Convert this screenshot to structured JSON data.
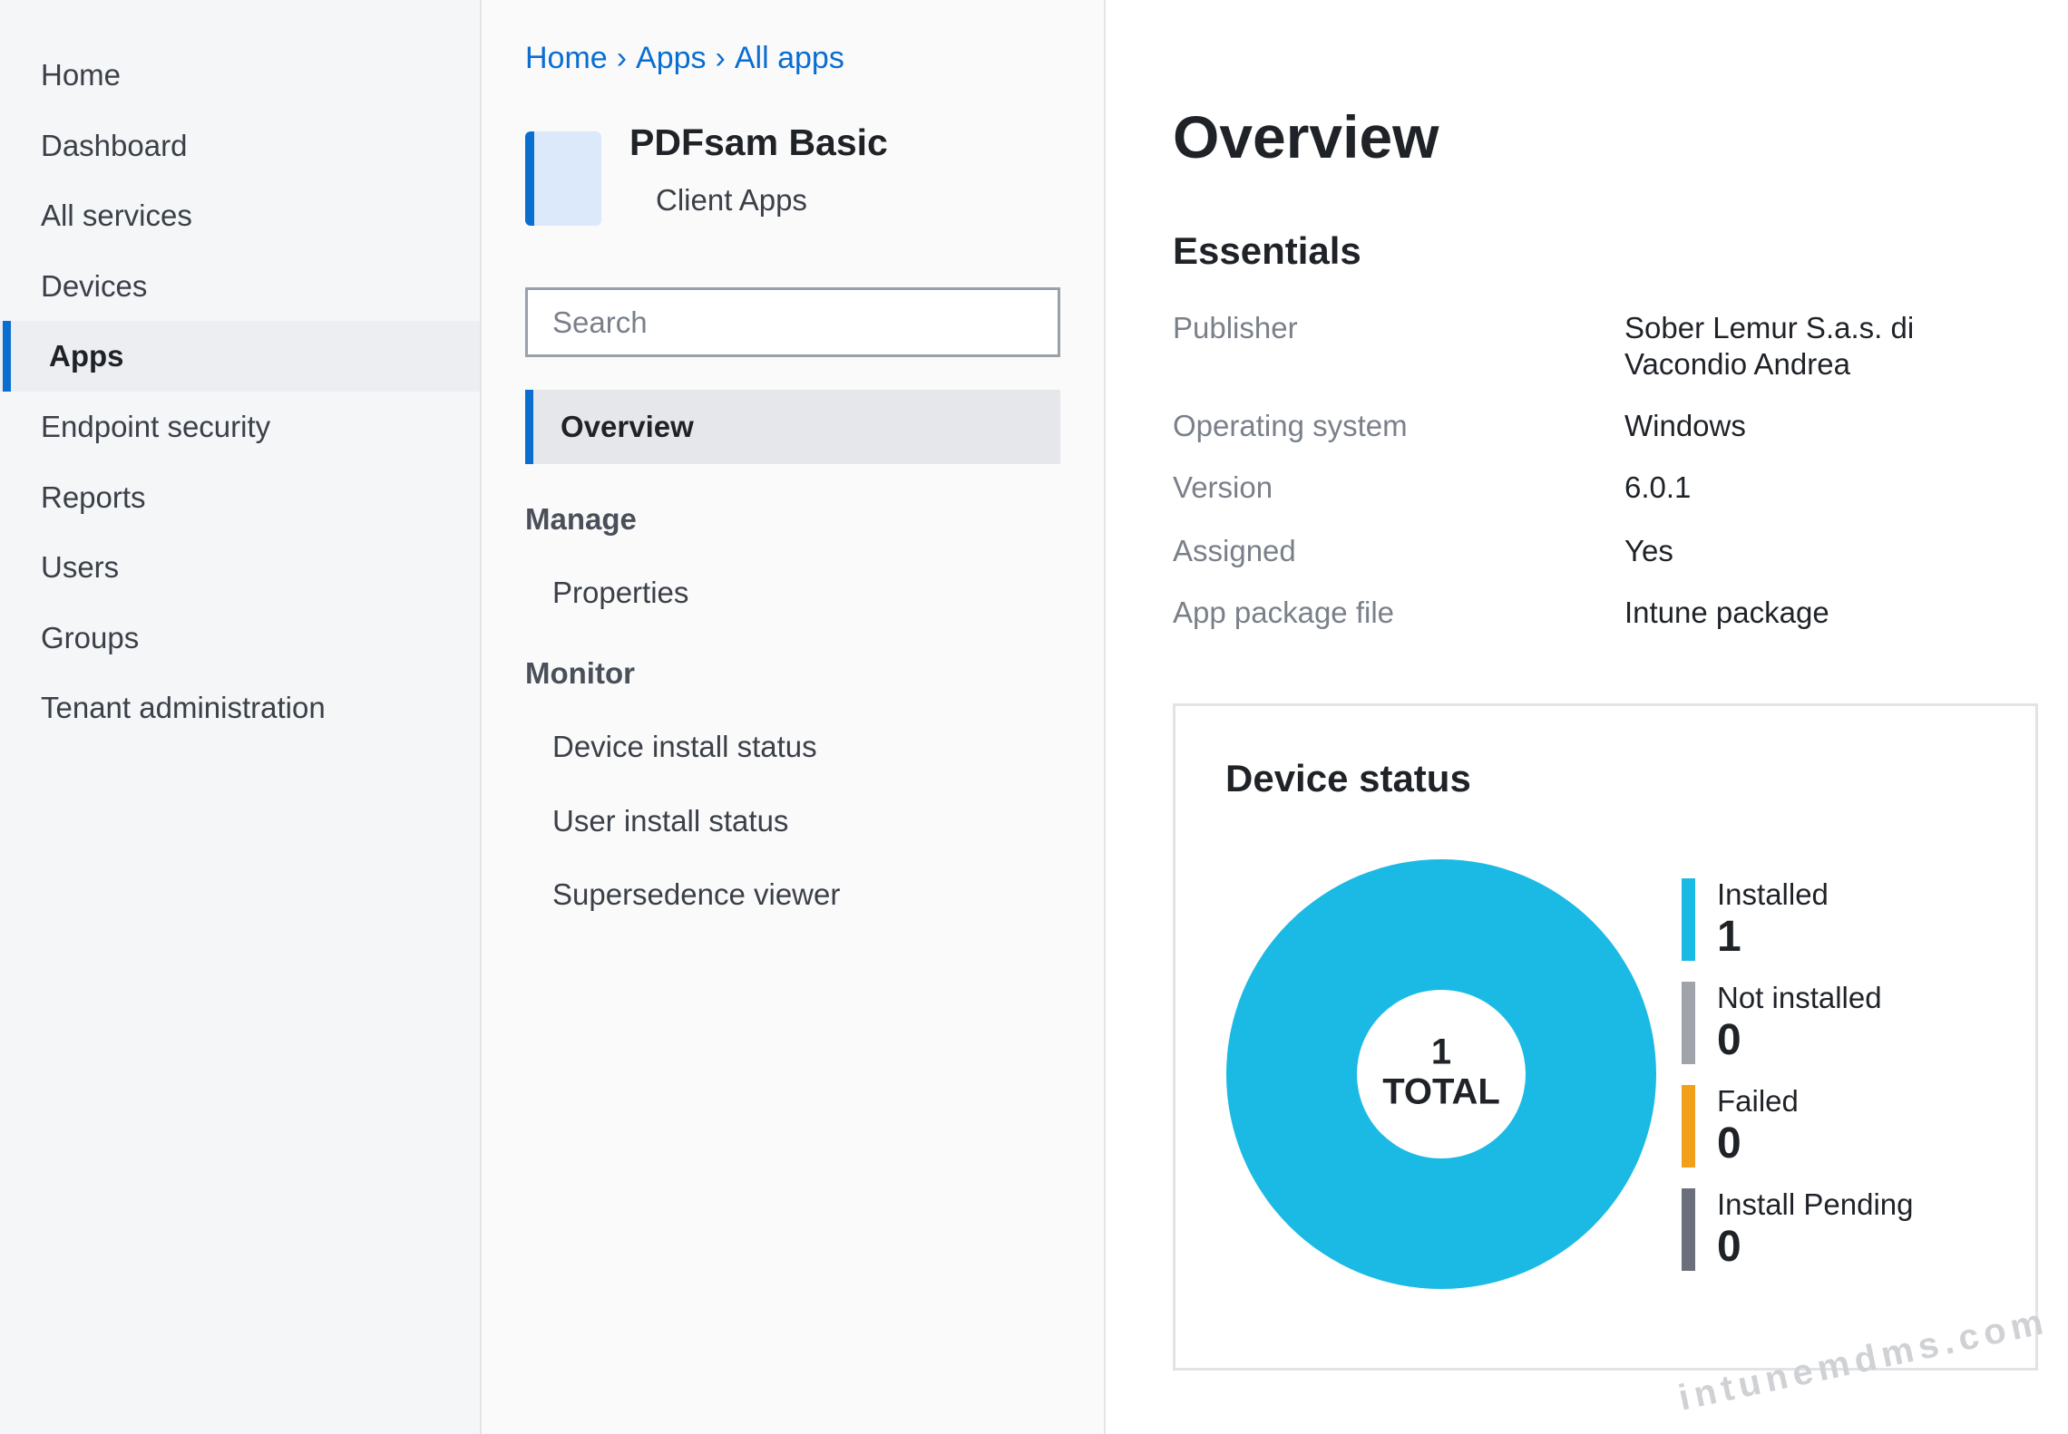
{
  "nav": {
    "items": [
      "Home",
      "Dashboard",
      "All services",
      "Devices",
      "Apps",
      "Endpoint security",
      "Reports",
      "Users",
      "Groups",
      "Tenant administration"
    ],
    "active": 4
  },
  "breadcrumb": {
    "items": [
      "Home",
      "Apps",
      "All apps"
    ],
    "separator": "›"
  },
  "app": {
    "name": "PDFsam Basic",
    "subtitle": "Client Apps"
  },
  "search": {
    "placeholder": "Search"
  },
  "menu": {
    "selected": "Overview",
    "sections": [
      {
        "title": "Manage",
        "items": [
          "Properties"
        ]
      },
      {
        "title": "Monitor",
        "items": [
          "Device install status",
          "User install status",
          "Supersedence viewer"
        ]
      }
    ]
  },
  "overview": {
    "title": "Overview",
    "essentials_title": "Essentials",
    "rows": [
      {
        "label": "Publisher",
        "value": "Sober Lemur S.a.s. di Vacondio Andrea"
      },
      {
        "label": "Operating system",
        "value": "Windows"
      },
      {
        "label": "Version",
        "value": "6.0.1"
      },
      {
        "label": "Assigned",
        "value": "Yes"
      },
      {
        "label": "App package file",
        "value": "Intune package"
      }
    ]
  },
  "chart_data": {
    "type": "donut",
    "title": "Device status",
    "categories": [
      "Installed",
      "Not installed",
      "Failed",
      "Install Pending"
    ],
    "values": [
      1,
      0,
      0,
      0
    ],
    "colors": [
      "#1bbae4",
      "#a0a3aa",
      "#f0a01a",
      "#6b6f7b"
    ],
    "total": 1,
    "total_label": "TOTAL"
  },
  "watermark": "intunemdms.com"
}
